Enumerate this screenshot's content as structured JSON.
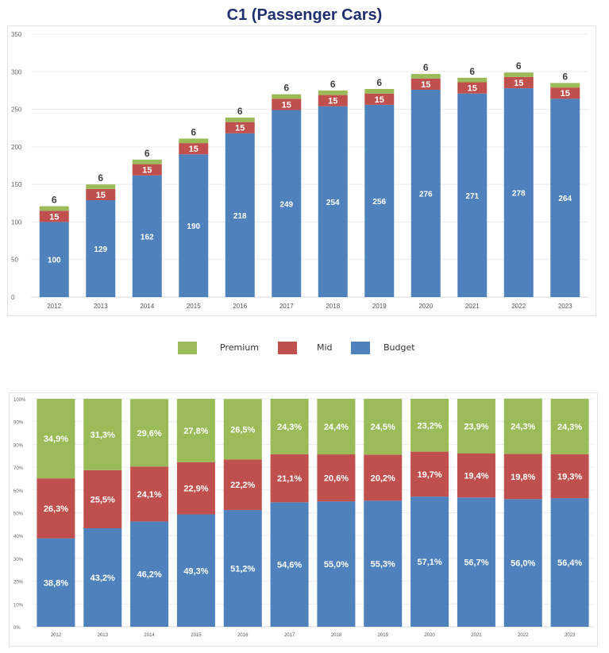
{
  "title": "C1 (Passenger Cars)",
  "colors": {
    "premium": "#9bbb59",
    "mid": "#c0504d",
    "budget": "#4f81bd",
    "title": "#1f2f6e"
  },
  "legend": [
    {
      "label": "Premium",
      "color": "#9bbb59"
    },
    {
      "label": "Mid",
      "color": "#c0504d"
    },
    {
      "label": "Budget",
      "color": "#4f81bd"
    }
  ],
  "chart_data": [
    {
      "type": "bar",
      "stacked": true,
      "title": "C1 (Passenger Cars)",
      "xlabel": "",
      "ylabel": "",
      "categories": [
        "2012",
        "2013",
        "2014",
        "2015",
        "2016",
        "2017",
        "2018",
        "2019",
        "2020",
        "2021",
        "2022",
        "2023"
      ],
      "series": [
        {
          "name": "Budget",
          "color": "#4f81bd",
          "values": [
            100,
            129,
            162,
            190,
            218,
            249,
            254,
            256,
            276,
            271,
            278,
            264
          ],
          "labels": [
            "100",
            "129",
            "162",
            "190",
            "218",
            "249",
            "254",
            "256",
            "276",
            "271",
            "278",
            "264"
          ]
        },
        {
          "name": "Mid",
          "color": "#c0504d",
          "values": [
            15,
            15,
            15,
            15,
            15,
            15,
            15,
            15,
            15,
            15,
            15,
            15
          ],
          "labels": [
            "15",
            "15",
            "15",
            "15",
            "15",
            "15",
            "15",
            "15",
            "15",
            "15",
            "15",
            "15"
          ]
        },
        {
          "name": "Premium",
          "color": "#9bbb59",
          "values": [
            6,
            6,
            6,
            6,
            6,
            6,
            6,
            6,
            6,
            6,
            6,
            6
          ],
          "labels": [
            "6",
            "6",
            "6",
            "6",
            "6",
            "6",
            "6",
            "6",
            "6",
            "6",
            "6",
            "6"
          ]
        }
      ],
      "yticks": [
        "0",
        "50",
        "100",
        "150",
        "200",
        "250",
        "300",
        "350"
      ],
      "ylim": [
        0,
        350
      ],
      "grid": true,
      "legend": "bottom-center"
    },
    {
      "type": "bar",
      "stacked": true,
      "percent": true,
      "title": "",
      "xlabel": "",
      "ylabel": "",
      "categories": [
        "2012",
        "2013",
        "2014",
        "2015",
        "2016",
        "2017",
        "2018",
        "2019",
        "2020",
        "2021",
        "2022",
        "2023"
      ],
      "series": [
        {
          "name": "Budget",
          "color": "#4f81bd",
          "values": [
            38.8,
            43.2,
            46.2,
            49.3,
            51.2,
            54.6,
            55.0,
            55.3,
            57.1,
            56.7,
            56.0,
            56.4
          ],
          "labels": [
            "38,8%",
            "43,2%",
            "46,2%",
            "49,3%",
            "51,2%",
            "54,6%",
            "55,0%",
            "55,3%",
            "57,1%",
            "56,7%",
            "56,0%",
            "56,4%"
          ]
        },
        {
          "name": "Mid",
          "color": "#c0504d",
          "values": [
            26.3,
            25.5,
            24.1,
            22.9,
            22.2,
            21.1,
            20.6,
            20.2,
            19.7,
            19.4,
            19.8,
            19.3
          ],
          "labels": [
            "26,3%",
            "25,5%",
            "24,1%",
            "22,9%",
            "22,2%",
            "21,1%",
            "20,6%",
            "20,2%",
            "19,7%",
            "19,4%",
            "19,8%",
            "19,3%"
          ]
        },
        {
          "name": "Premium",
          "color": "#9bbb59",
          "values": [
            34.9,
            31.3,
            29.6,
            27.8,
            26.5,
            24.3,
            24.4,
            24.5,
            23.2,
            23.9,
            24.3,
            24.3
          ],
          "labels": [
            "34,9%",
            "31,3%",
            "29,6%",
            "27,8%",
            "26,5%",
            "24,3%",
            "24,4%",
            "24,5%",
            "23,2%",
            "23,9%",
            "24,3%",
            "24,3%"
          ]
        }
      ],
      "yticks": [
        "0%",
        "10%",
        "20%",
        "30%",
        "40%",
        "50%",
        "60%",
        "70%",
        "80%",
        "90%",
        "100%"
      ],
      "ylim": [
        0,
        100
      ],
      "grid": true,
      "legend": "none"
    }
  ]
}
